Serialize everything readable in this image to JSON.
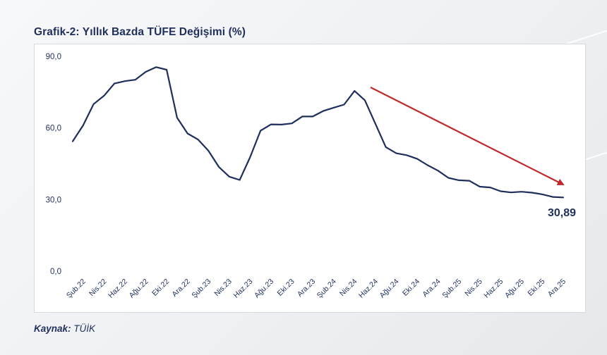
{
  "chart_data": {
    "type": "line",
    "title": "Grafik-2: Yıllık Bazda TÜFE Değişimi (%)",
    "xlabel": "",
    "ylabel": "",
    "ylim": [
      0,
      90
    ],
    "yticks": [
      0,
      30,
      60,
      90
    ],
    "ytick_labels": [
      "0,0",
      "30,0",
      "60,0",
      "90,0"
    ],
    "x_tick_labels": [
      "Şub.22",
      "Nis.22",
      "Haz.22",
      "Ağu.22",
      "Eki.22",
      "Ara.22",
      "Şub.23",
      "Nis.23",
      "Haz.23",
      "Ağu.23",
      "Eki.23",
      "Ara.23",
      "Şub.24",
      "Nis.24",
      "Haz.24",
      "Ağu.24",
      "Eki.24",
      "Ara.24",
      "Şub.25",
      "Nis.25",
      "Haz.25",
      "Ağu.25",
      "Eki.25",
      "Ara.25"
    ],
    "series": [
      {
        "name": "TÜFE (yıllık %)",
        "color": "#1f2f5c",
        "values": [
          54.4,
          61.1,
          70.0,
          73.5,
          78.6,
          79.6,
          80.2,
          83.5,
          85.5,
          84.4,
          64.3,
          57.7,
          55.2,
          50.5,
          43.7,
          39.6,
          38.2,
          47.8,
          58.9,
          61.5,
          61.4,
          61.9,
          64.8,
          64.8,
          67.1,
          68.5,
          69.8,
          75.5,
          71.6,
          61.8,
          52.0,
          49.4,
          48.6,
          47.1,
          44.4,
          42.1,
          39.1,
          38.1,
          37.9,
          35.4,
          35.1,
          33.5,
          33.0,
          33.3,
          32.9,
          32.2,
          31.1,
          30.89
        ]
      }
    ],
    "end_label": "30,89",
    "annotation": "downward trend arrow",
    "arrow_color": "#c0282d",
    "legend": "none",
    "grid": false
  },
  "source": {
    "label": "Kaynak:",
    "value": "TÜİK"
  }
}
